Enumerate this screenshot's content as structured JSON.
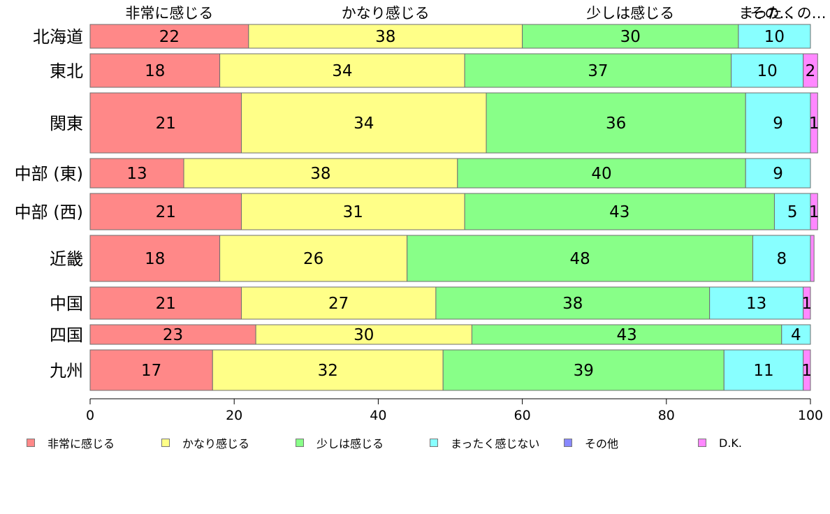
{
  "chart_data": {
    "type": "bar",
    "orientation": "horizontal",
    "stacked": true,
    "categories": [
      "北海道",
      "東北",
      "関東",
      "中部 (東)",
      "中部 (西)",
      "近畿",
      "中国",
      "四国",
      "九州"
    ],
    "series": [
      {
        "name": "非常に感じる",
        "color": "#ff8888",
        "values": [
          22,
          18,
          21,
          13,
          21,
          18,
          21,
          23,
          17
        ]
      },
      {
        "name": "かなり感じる",
        "color": "#ffff88",
        "values": [
          38,
          34,
          34,
          38,
          31,
          26,
          27,
          30,
          32
        ]
      },
      {
        "name": "少しは感じる",
        "color": "#88ff88",
        "values": [
          30,
          37,
          36,
          40,
          43,
          48,
          38,
          43,
          39
        ]
      },
      {
        "name": "まったく感じない",
        "color": "#88ffff",
        "values": [
          10,
          10,
          9,
          9,
          5,
          8,
          13,
          4,
          11
        ]
      },
      {
        "name": "その他",
        "color": "#8888ff",
        "values": [
          0,
          0,
          0,
          0,
          0,
          0,
          0,
          0,
          0
        ]
      },
      {
        "name": "D.K.",
        "color": "#ff88ff",
        "values": [
          0,
          2,
          1,
          0,
          1,
          0.5,
          1,
          0,
          1
        ]
      }
    ],
    "data_labels": [
      [
        "22",
        "38",
        "30",
        "10",
        "",
        ""
      ],
      [
        "18",
        "34",
        "37",
        "10",
        "",
        "2"
      ],
      [
        "21",
        "34",
        "36",
        "9",
        "",
        "1"
      ],
      [
        "13",
        "38",
        "40",
        "9",
        "",
        ""
      ],
      [
        "21",
        "31",
        "43",
        "5",
        "",
        "1"
      ],
      [
        "18",
        "26",
        "48",
        "8",
        "",
        ""
      ],
      [
        "21",
        "27",
        "38",
        "13",
        "",
        "1"
      ],
      [
        "23",
        "30",
        "43",
        "4",
        "",
        ""
      ],
      [
        "17",
        "32",
        "39",
        "11",
        "",
        "1"
      ]
    ],
    "bar_heights": [
      8.5,
      12.0,
      21.5,
      10.5,
      13.0,
      16.5,
      11.5,
      7.0,
      14.5
    ],
    "top_labels": [
      "非常に感じる",
      "かなり感じる",
      "少しは感じる",
      "まったくの…",
      "その…"
    ],
    "x_ticks": [
      0,
      20,
      40,
      60,
      80,
      100
    ],
    "xlim": [
      0,
      100
    ],
    "legend_position": "bottom",
    "grid": false
  }
}
